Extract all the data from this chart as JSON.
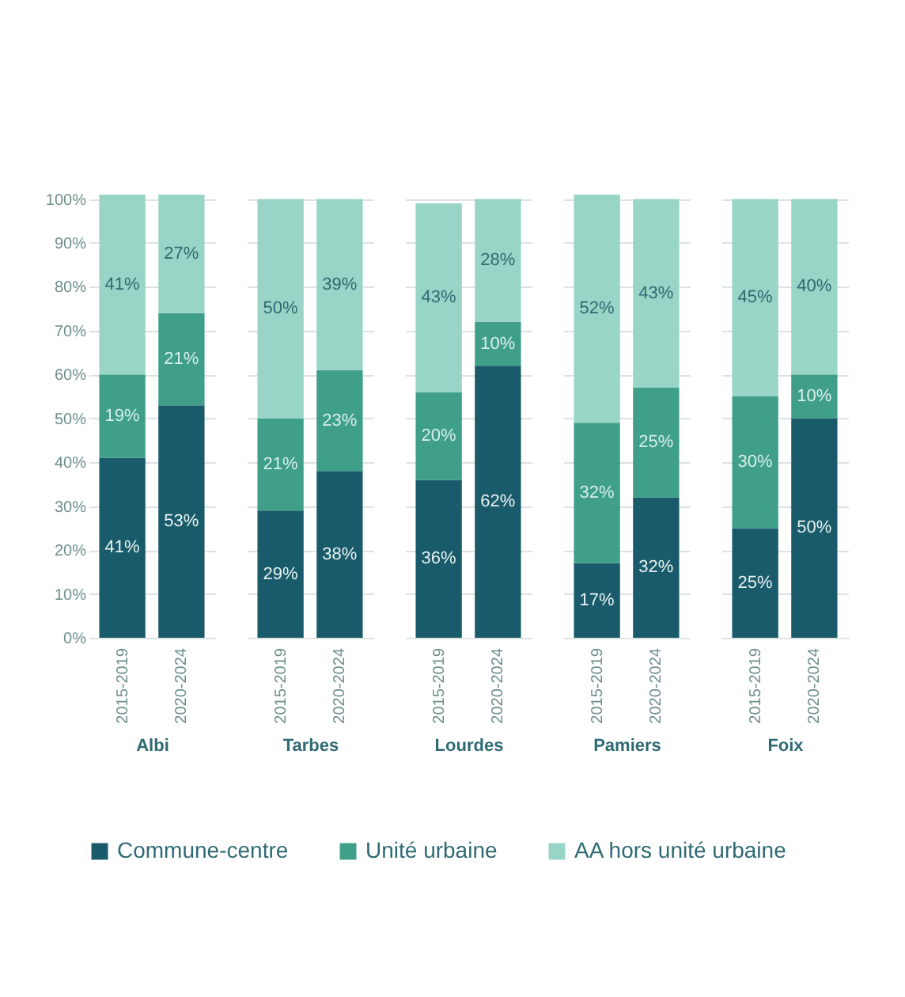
{
  "chart_data": [
    {
      "type": "bar",
      "stacked": true,
      "xlabel": "Albi",
      "categories": [
        "2015-2019",
        "2020-2024"
      ],
      "ylim": [
        0,
        101
      ],
      "yticks": [
        {
          "value": 0,
          "label": "0%"
        },
        {
          "value": 10,
          "label": "10%"
        },
        {
          "value": 20,
          "label": "20%"
        },
        {
          "value": 30,
          "label": "30%"
        },
        {
          "value": 40,
          "label": "40%"
        },
        {
          "value": 50,
          "label": "50%"
        },
        {
          "value": 60,
          "label": "60%"
        },
        {
          "value": 70,
          "label": "70%"
        },
        {
          "value": 80,
          "label": "80%"
        },
        {
          "value": 90,
          "label": "90%"
        },
        {
          "value": 100,
          "label": "100%"
        }
      ],
      "grid": "y",
      "legend": "bottom",
      "series": [
        {
          "name": "Commune-centre",
          "color": "#195a6b",
          "values": [
            41,
            53
          ],
          "value_labels": [
            "41%",
            "53%"
          ]
        },
        {
          "name": "Unité urbaine",
          "color": "#3f9f89",
          "values": [
            19,
            21
          ],
          "value_labels": [
            "19%",
            "21%"
          ]
        },
        {
          "name": "AA hors unité urbaine",
          "color": "#98d5c7",
          "values": [
            41,
            27
          ],
          "value_labels": [
            "41%",
            "27%"
          ]
        }
      ]
    },
    {
      "type": "bar",
      "stacked": true,
      "xlabel": "Tarbes",
      "categories": [
        "2015-2019",
        "2020-2024"
      ],
      "ylim": [
        0,
        101
      ],
      "yticks": [
        0,
        10,
        20,
        30,
        40,
        50,
        60,
        70,
        80,
        90,
        100
      ],
      "grid": "y",
      "legend": "bottom",
      "tick_labels": "x",
      "series": [
        {
          "name": "Commune-centre",
          "color": "#195a6b",
          "values": [
            29,
            38
          ],
          "value_labels": [
            "29%",
            "38%"
          ]
        },
        {
          "name": "Unité urbaine",
          "color": "#3f9f89",
          "values": [
            21,
            23
          ],
          "value_labels": [
            "21%",
            "23%"
          ]
        },
        {
          "name": "AA hors unité urbaine",
          "color": "#98d5c7",
          "values": [
            50,
            39
          ],
          "value_labels": [
            "50%",
            "39%"
          ]
        }
      ]
    },
    {
      "type": "bar",
      "stacked": true,
      "xlabel": "Lourdes",
      "categories": [
        "2015-2019",
        "2020-2024"
      ],
      "ylim": [
        0,
        101
      ],
      "yticks": [
        0,
        10,
        20,
        30,
        40,
        50,
        60,
        70,
        80,
        90,
        100
      ],
      "grid": "y",
      "legend": "bottom",
      "tick_labels": "x",
      "series": [
        {
          "name": "Commune-centre",
          "color": "#195a6b",
          "values": [
            36,
            62
          ],
          "value_labels": [
            "36%",
            "62%"
          ]
        },
        {
          "name": "Unité urbaine",
          "color": "#3f9f89",
          "values": [
            20,
            10
          ],
          "value_labels": [
            "20%",
            "10%"
          ]
        },
        {
          "name": "AA hors unité urbaine",
          "color": "#98d5c7",
          "values": [
            43,
            28
          ],
          "value_labels": [
            "43%",
            "28%"
          ]
        }
      ]
    },
    {
      "type": "bar",
      "stacked": true,
      "xlabel": "Pamiers",
      "categories": [
        "2015-2019",
        "2020-2024"
      ],
      "ylim": [
        0,
        101
      ],
      "yticks": [
        0,
        10,
        20,
        30,
        40,
        50,
        60,
        70,
        80,
        90,
        100
      ],
      "grid": "y",
      "legend": "bottom",
      "tick_labels": "x",
      "series": [
        {
          "name": "Commune-centre",
          "color": "#195a6b",
          "values": [
            17,
            32
          ],
          "value_labels": [
            "17%",
            "32%"
          ]
        },
        {
          "name": "Unité urbaine",
          "color": "#3f9f89",
          "values": [
            32,
            25
          ],
          "value_labels": [
            "32%",
            "25%"
          ]
        },
        {
          "name": "AA hors unité urbaine",
          "color": "#98d5c7",
          "values": [
            52,
            43
          ],
          "value_labels": [
            "52%",
            "43%"
          ]
        }
      ]
    },
    {
      "type": "bar",
      "stacked": true,
      "xlabel": "Foix",
      "categories": [
        "2015-2019",
        "2020-2024"
      ],
      "ylim": [
        0,
        101
      ],
      "yticks": [
        0,
        10,
        20,
        30,
        40,
        50,
        60,
        70,
        80,
        90,
        100
      ],
      "grid": "y",
      "legend": "bottom",
      "tick_labels": "x",
      "series": [
        {
          "name": "Commune-centre",
          "color": "#195a6b",
          "values": [
            25,
            50
          ],
          "value_labels": [
            "25%",
            "50%"
          ]
        },
        {
          "name": "Unité urbaine",
          "color": "#3f9f89",
          "values": [
            30,
            10
          ],
          "value_labels": [
            "30%",
            "10%"
          ]
        },
        {
          "name": "AA hors unité urbaine",
          "color": "#98d5c7",
          "values": [
            45,
            40
          ],
          "value_labels": [
            "45%",
            "40%"
          ]
        }
      ]
    }
  ]
}
